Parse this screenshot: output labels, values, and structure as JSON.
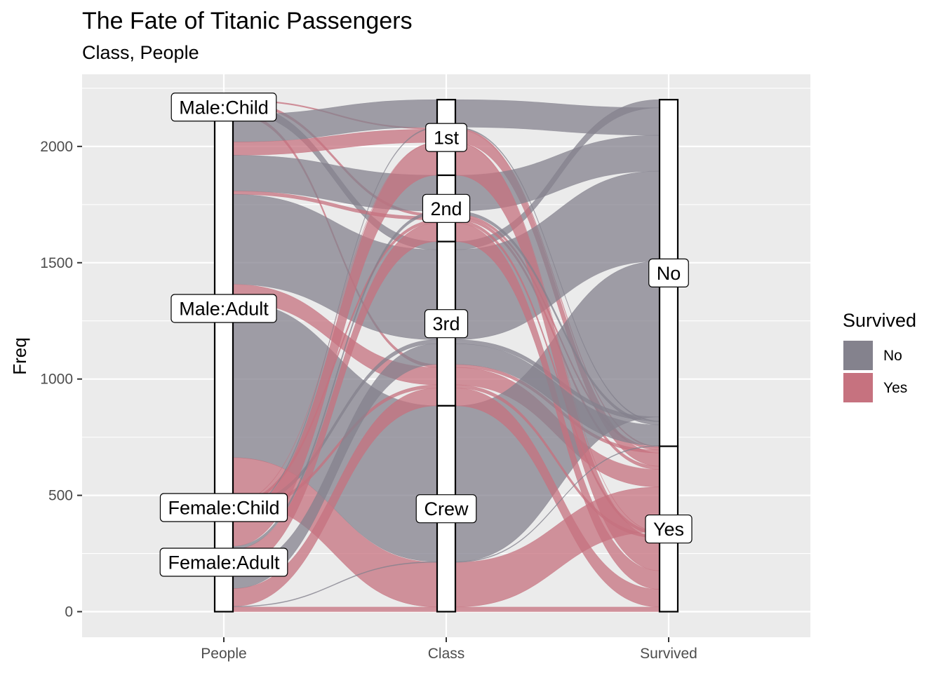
{
  "chart_data": {
    "type": "alluvial",
    "title": "The Fate of Titanic Passengers",
    "subtitle": "Class, People",
    "ylabel": "Freq",
    "xlabel": "",
    "ylim": [
      -110,
      2310
    ],
    "yticks": [
      0,
      500,
      1000,
      1500,
      2000
    ],
    "grid": true,
    "legend_position": "right",
    "axes": [
      "People",
      "Class",
      "Survived"
    ],
    "strata": {
      "People": [
        "Male:Child",
        "Male:Adult",
        "Female:Child",
        "Female:Adult"
      ],
      "Class": [
        "1st",
        "2nd",
        "3rd",
        "Crew"
      ],
      "Survived": [
        "No",
        "Yes"
      ]
    },
    "legend": {
      "title": "Survived",
      "items": [
        {
          "label": "No",
          "color": "#84828d"
        },
        {
          "label": "Yes",
          "color": "#c6727f"
        }
      ]
    },
    "flows": [
      {
        "people": "Male:Child",
        "class": "1st",
        "survived": "Yes",
        "freq": 5
      },
      {
        "people": "Male:Child",
        "class": "2nd",
        "survived": "Yes",
        "freq": 11
      },
      {
        "people": "Male:Child",
        "class": "3rd",
        "survived": "No",
        "freq": 35
      },
      {
        "people": "Male:Child",
        "class": "3rd",
        "survived": "Yes",
        "freq": 13
      },
      {
        "people": "Male:Adult",
        "class": "1st",
        "survived": "No",
        "freq": 118
      },
      {
        "people": "Male:Adult",
        "class": "1st",
        "survived": "Yes",
        "freq": 57
      },
      {
        "people": "Male:Adult",
        "class": "2nd",
        "survived": "No",
        "freq": 154
      },
      {
        "people": "Male:Adult",
        "class": "2nd",
        "survived": "Yes",
        "freq": 14
      },
      {
        "people": "Male:Adult",
        "class": "3rd",
        "survived": "No",
        "freq": 387
      },
      {
        "people": "Male:Adult",
        "class": "3rd",
        "survived": "Yes",
        "freq": 75
      },
      {
        "people": "Male:Adult",
        "class": "Crew",
        "survived": "No",
        "freq": 670
      },
      {
        "people": "Male:Adult",
        "class": "Crew",
        "survived": "Yes",
        "freq": 192
      },
      {
        "people": "Female:Child",
        "class": "1st",
        "survived": "Yes",
        "freq": 1
      },
      {
        "people": "Female:Child",
        "class": "2nd",
        "survived": "Yes",
        "freq": 13
      },
      {
        "people": "Female:Child",
        "class": "3rd",
        "survived": "No",
        "freq": 17
      },
      {
        "people": "Female:Child",
        "class": "3rd",
        "survived": "Yes",
        "freq": 14
      },
      {
        "people": "Female:Adult",
        "class": "1st",
        "survived": "No",
        "freq": 4
      },
      {
        "people": "Female:Adult",
        "class": "1st",
        "survived": "Yes",
        "freq": 140
      },
      {
        "people": "Female:Adult",
        "class": "2nd",
        "survived": "No",
        "freq": 13
      },
      {
        "people": "Female:Adult",
        "class": "2nd",
        "survived": "Yes",
        "freq": 80
      },
      {
        "people": "Female:Adult",
        "class": "3rd",
        "survived": "No",
        "freq": 89
      },
      {
        "people": "Female:Adult",
        "class": "3rd",
        "survived": "Yes",
        "freq": 76
      },
      {
        "people": "Female:Adult",
        "class": "Crew",
        "survived": "No",
        "freq": 3
      },
      {
        "people": "Female:Adult",
        "class": "Crew",
        "survived": "Yes",
        "freq": 20
      }
    ]
  }
}
